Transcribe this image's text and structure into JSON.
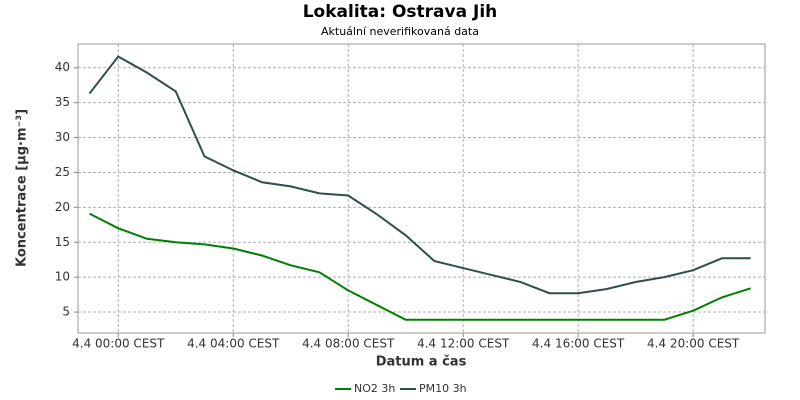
{
  "chart_data": {
    "type": "line",
    "title": "Lokalita: Ostrava Jih",
    "subtitle": "Aktuální neverifikovaná data",
    "x_label": "Datum a čas",
    "y_label": "Koncentrace [µg·m⁻³]",
    "x": [
      -1,
      0,
      1,
      2,
      3,
      4,
      5,
      6,
      7,
      8,
      9,
      10,
      11,
      12,
      13,
      14,
      15,
      16,
      17,
      18,
      19,
      20,
      21,
      22
    ],
    "xlim": [
      -1.4,
      22.5
    ],
    "xticks": [
      {
        "value": 0,
        "label": "4.4 00:00 CEST"
      },
      {
        "value": 4,
        "label": "4.4 04:00 CEST"
      },
      {
        "value": 8,
        "label": "4.4 08:00 CEST"
      },
      {
        "value": 12,
        "label": "4.4 12:00 CEST"
      },
      {
        "value": 16,
        "label": "4.4 16:00 CEST"
      },
      {
        "value": 20,
        "label": "4.4 20:00 CEST"
      }
    ],
    "ylim": [
      2,
      43.4
    ],
    "yticks": [
      5,
      10,
      15,
      20,
      25,
      30,
      35,
      40
    ],
    "grid": true,
    "legend": "bottom",
    "series": [
      {
        "name": "NO2 3h",
        "color": "#008000",
        "values": [
          19.1,
          17,
          15.5,
          15,
          14.7,
          14.1,
          13.1,
          11.7,
          10.7,
          8.1,
          6,
          3.9,
          3.9,
          3.9,
          3.9,
          3.9,
          3.9,
          3.9,
          3.9,
          3.9,
          3.9,
          5.2,
          7.1,
          8.4
        ]
      },
      {
        "name": "PM10 3h",
        "color": "#2f4f4f",
        "values": [
          36.3,
          41.6,
          39.3,
          36.6,
          27.3,
          25.3,
          23.6,
          23,
          22,
          21.7,
          19,
          16,
          12.3,
          11.3,
          10.3,
          9.3,
          7.7,
          7.7,
          8.3,
          9.3,
          10,
          11,
          12.7,
          12.7
        ]
      }
    ]
  }
}
